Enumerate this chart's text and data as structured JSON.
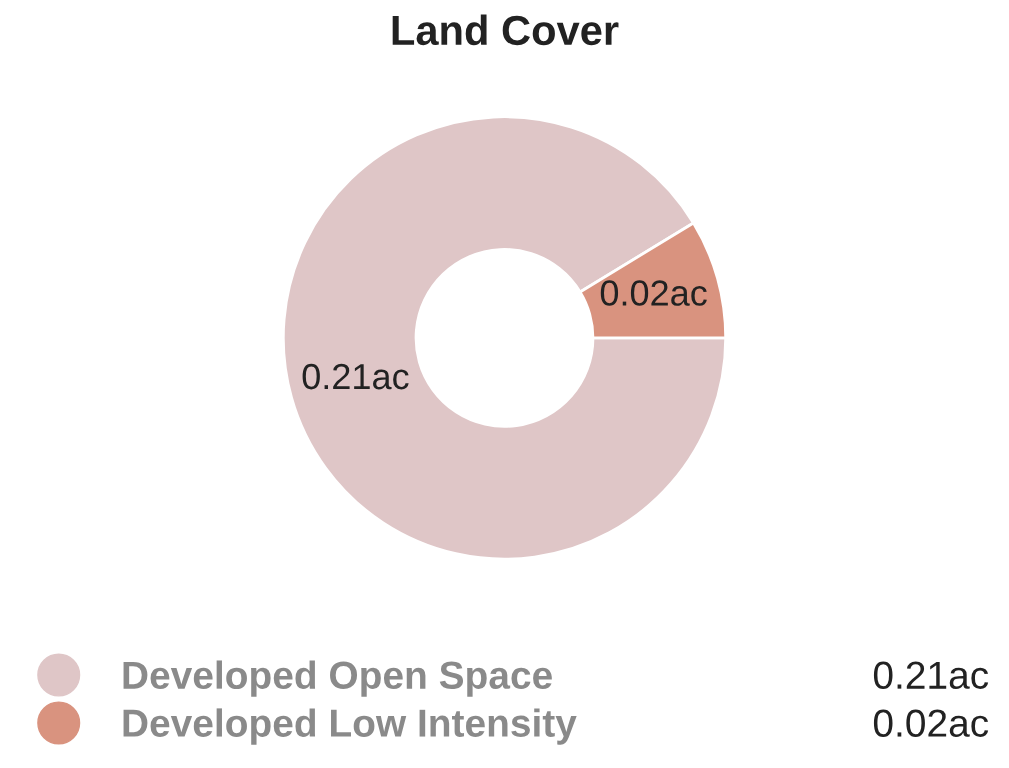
{
  "chart_data": {
    "type": "donut",
    "title": "Land Cover",
    "categories": [
      "Developed Open Space",
      "Developed Low Intensity"
    ],
    "values": [
      0.21,
      0.02
    ],
    "colors": [
      "#dfc6c7",
      "#d9937f"
    ],
    "value_labels": [
      "0.21ac",
      "0.02ac"
    ],
    "legend": "bottom"
  }
}
